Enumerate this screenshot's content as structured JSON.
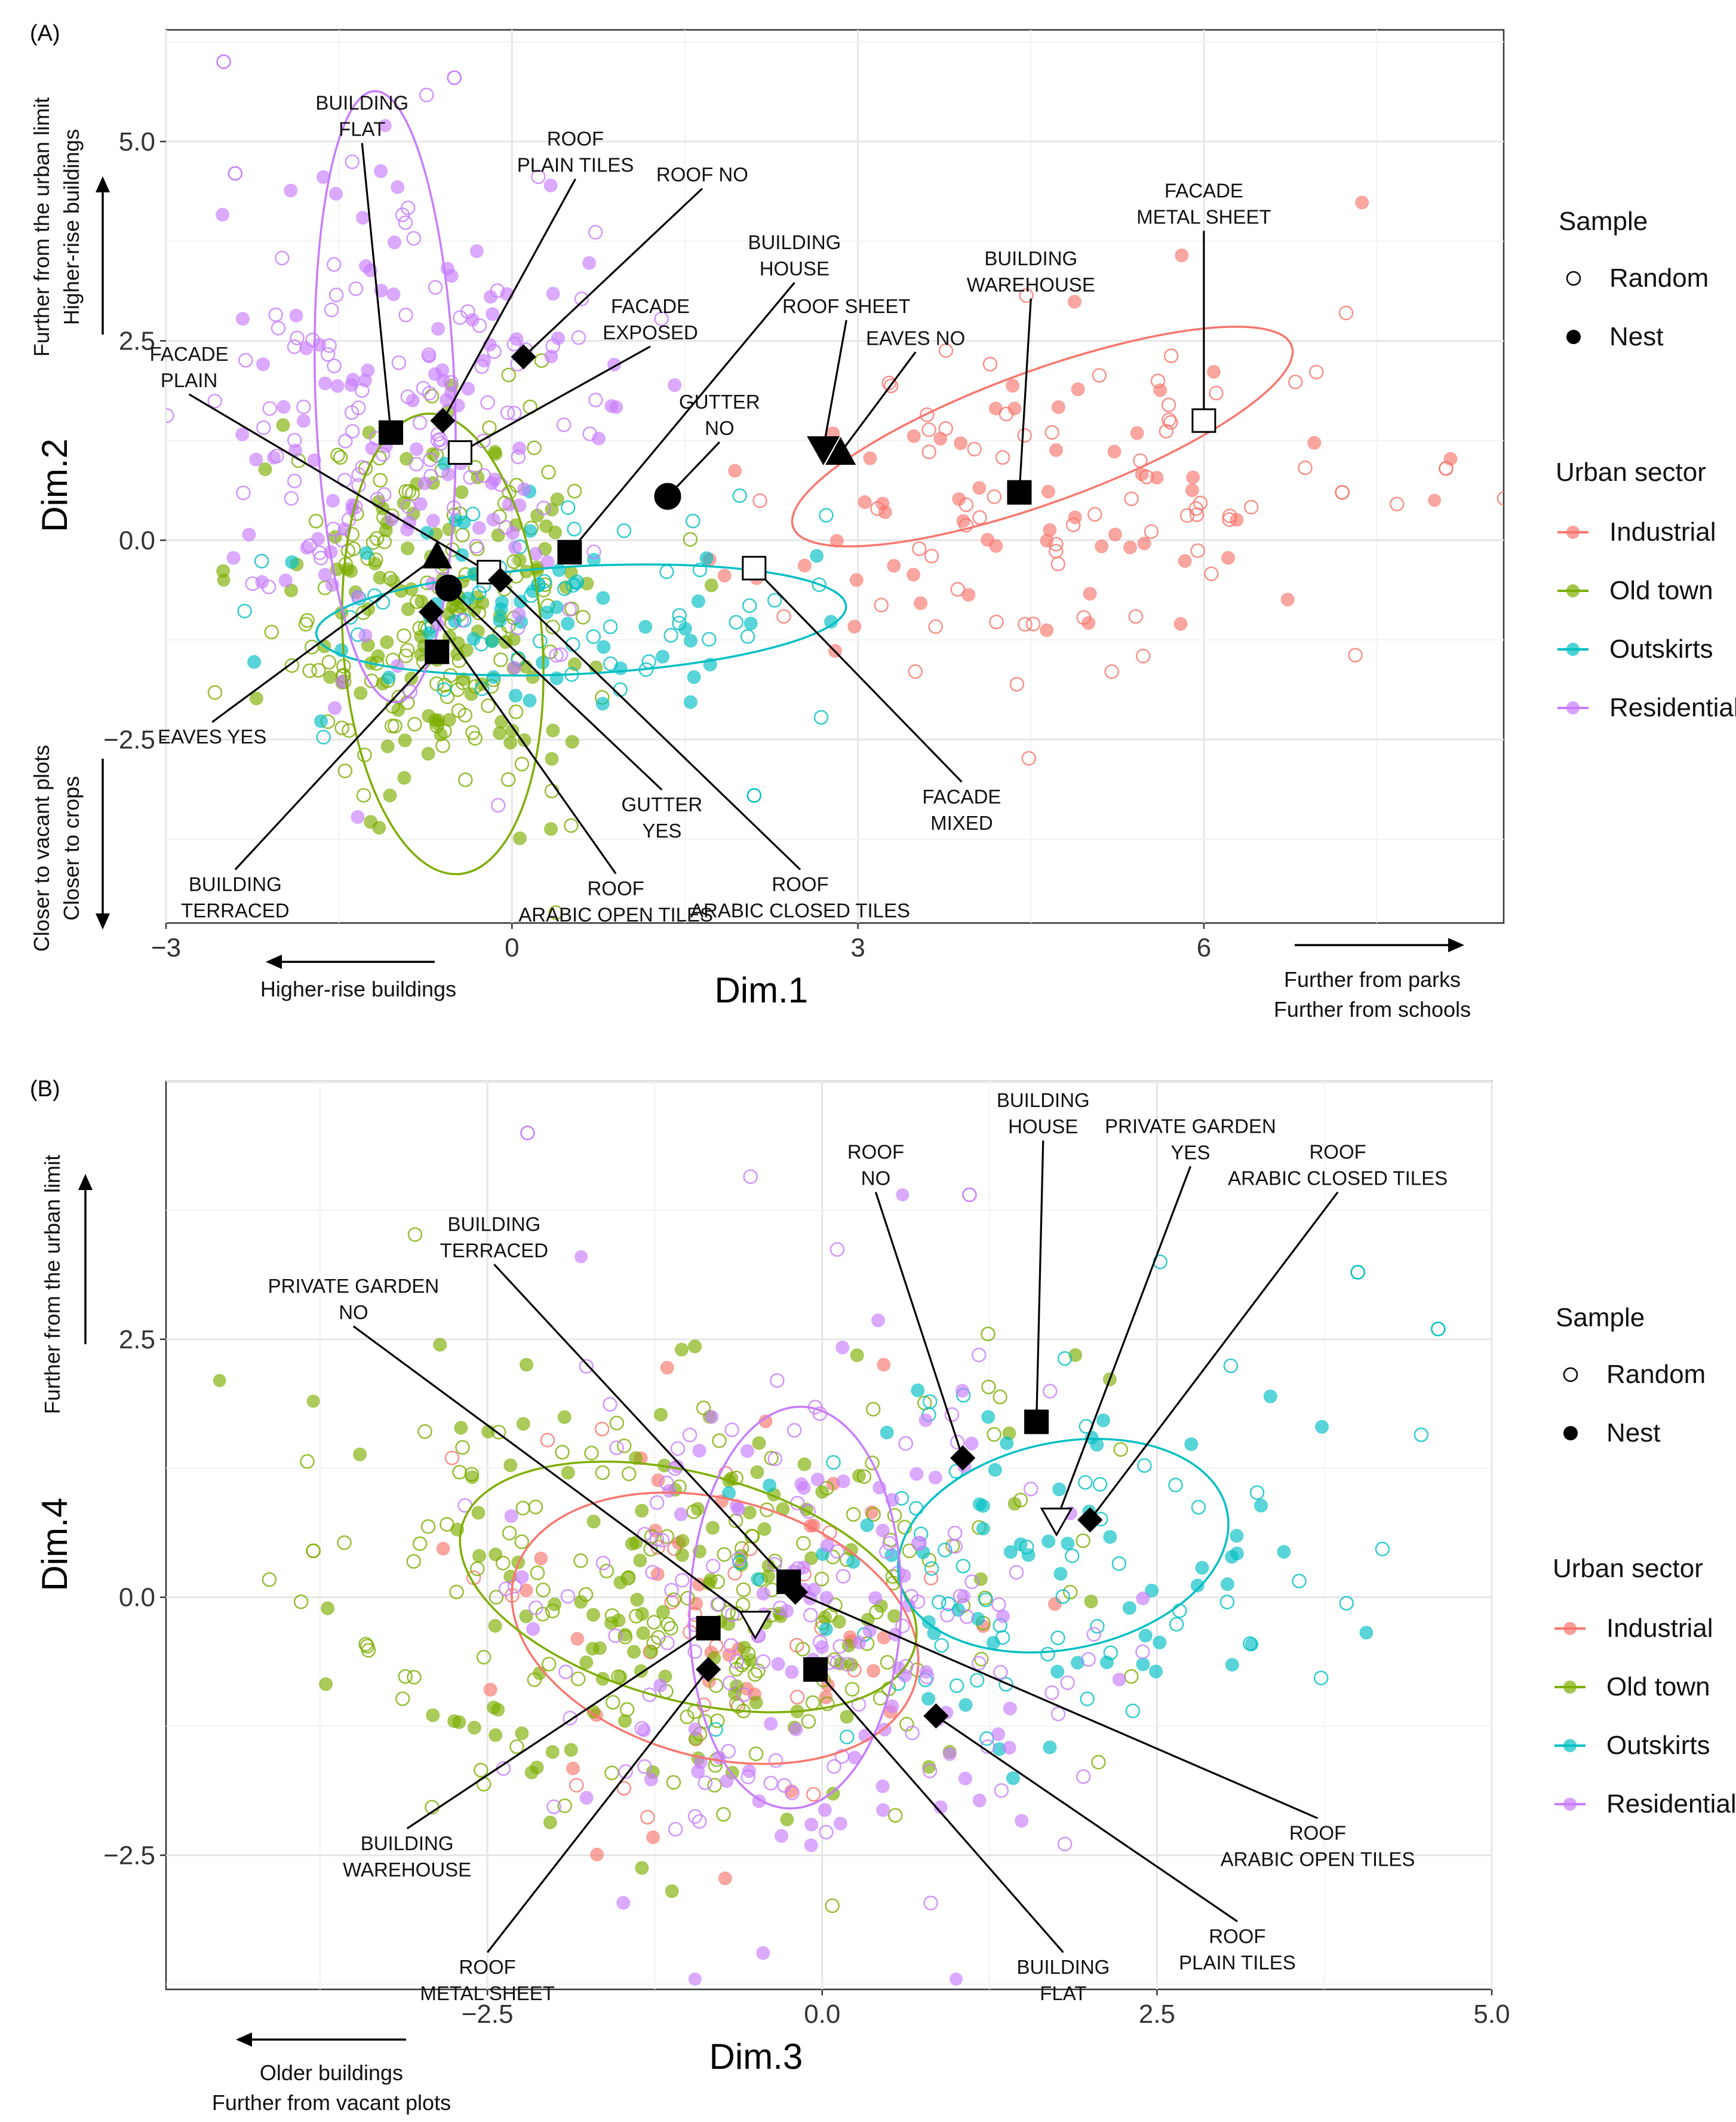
{
  "colors": {
    "Industrial": "#F8766D",
    "Old town": "#7CAE00",
    "Outskirts": "#00BFC4",
    "Residential": "#C77CFF"
  },
  "legend": {
    "sample_title": "Sample",
    "sample_items": [
      {
        "label": "Random",
        "shape": "open-circle"
      },
      {
        "label": "Nest",
        "shape": "filled-circle"
      }
    ],
    "sector_title": "Urban sector",
    "sector_items": [
      "Industrial",
      "Old town",
      "Outskirts",
      "Residential"
    ]
  },
  "chart_data": [
    {
      "panel": "(A)",
      "type": "scatter",
      "xlabel": "Dim.1",
      "ylabel": "Dim.2",
      "xlim": [
        -3.0,
        8.6
      ],
      "ylim": [
        -4.8,
        6.4
      ],
      "xticks": [
        -3,
        0,
        3,
        6
      ],
      "xtick_labels": [
        "−3",
        "0",
        "3",
        "6"
      ],
      "yticks": [
        -2.5,
        0.0,
        2.5,
        5.0
      ],
      "ytick_labels": [
        "−2.5",
        "0.0",
        "2.5",
        "5.0"
      ],
      "direction_labels": {
        "x_neg": [
          "Higher-rise buildings"
        ],
        "x_pos": [
          "Further from parks",
          "Further from schools"
        ],
        "y_pos": [
          "Further from the urban limit",
          "Higher-rise buildings"
        ],
        "y_neg": [
          "Closer to vacant plots",
          "Closer to crops"
        ]
      },
      "ellipses": [
        {
          "sector": "Industrial",
          "cx": 4.6,
          "cy": 1.3,
          "rx": 4.6,
          "ry": 1.65,
          "angle": 20
        },
        {
          "sector": "Old town",
          "cx": -0.6,
          "cy": -1.3,
          "rx": 4.0,
          "ry": 2.5,
          "angle": 94
        },
        {
          "sector": "Outskirts",
          "cx": 0.6,
          "cy": -1.0,
          "rx": 4.6,
          "ry": 1.35,
          "angle": 3
        },
        {
          "sector": "Residential",
          "cx": -1.1,
          "cy": 1.8,
          "rx": 5.3,
          "ry": 1.75,
          "angle": 92
        }
      ],
      "clouds": [
        {
          "sector": "Industrial",
          "n": 130,
          "cx": 4.4,
          "cy": 0.4,
          "sx": 1.5,
          "sy": 1.1,
          "rot": 0.33
        },
        {
          "sector": "Old town",
          "n": 260,
          "cx": -0.6,
          "cy": -1.0,
          "sx": 0.75,
          "sy": 1.25,
          "rot": 0.0
        },
        {
          "sector": "Outskirts",
          "n": 110,
          "cx": 0.5,
          "cy": -0.8,
          "sx": 1.3,
          "sy": 0.7,
          "rot": 0.0
        },
        {
          "sector": "Residential",
          "n": 220,
          "cx": -1.0,
          "cy": 1.6,
          "sx": 0.9,
          "sy": 1.6,
          "rot": 0.0
        }
      ],
      "scatter_extra": [
        {
          "sector": "Residential",
          "x": -1.1,
          "y": 5.2,
          "nest": true
        },
        {
          "sector": "Residential",
          "x": -2.5,
          "y": 6.0,
          "nest": false
        },
        {
          "sector": "Residential",
          "x": -0.5,
          "y": 5.8,
          "nest": false
        },
        {
          "sector": "Residential",
          "x": -2.4,
          "y": 4.6,
          "nest": false
        },
        {
          "sector": "Industrial",
          "x": 8.1,
          "y": 0.9,
          "nest": false
        },
        {
          "sector": "Industrial",
          "x": 8.0,
          "y": 0.5,
          "nest": true
        },
        {
          "sector": "Industrial",
          "x": 7.2,
          "y": 0.6,
          "nest": false
        },
        {
          "sector": "Outskirts",
          "x": 2.1,
          "y": -3.2,
          "nest": false
        },
        {
          "sector": "Old town",
          "x": -2.5,
          "y": -0.5,
          "nest": true
        }
      ],
      "categories": [
        {
          "shape": "square",
          "fill": "filled",
          "x": -1.05,
          "y": 1.35,
          "label": [
            "BUILDING",
            "FLAT"
          ],
          "lx": -1.3,
          "ly": 5.4,
          "anchor": "middle"
        },
        {
          "shape": "diamond",
          "fill": "filled",
          "x": -0.6,
          "y": 1.5,
          "label": [
            "ROOF",
            "PLAIN TILES"
          ],
          "lx": 0.55,
          "ly": 4.95,
          "anchor": "middle"
        },
        {
          "shape": "diamond",
          "fill": "filled",
          "x": 0.1,
          "y": 2.3,
          "label": [
            "ROOF NO"
          ],
          "lx": 1.65,
          "ly": 4.5,
          "anchor": "middle"
        },
        {
          "shape": "square",
          "fill": "open",
          "x": -0.45,
          "y": 1.1,
          "label": [
            "FACADE",
            "EXPOSED"
          ],
          "lx": 1.2,
          "ly": 2.85,
          "anchor": "middle"
        },
        {
          "shape": "square",
          "fill": "filled",
          "x": 0.5,
          "y": -0.15,
          "label": [
            "BUILDING",
            "HOUSE"
          ],
          "lx": 2.45,
          "ly": 3.65,
          "anchor": "middle"
        },
        {
          "shape": "circle",
          "fill": "filled",
          "x": 1.35,
          "y": 0.55,
          "label": [
            "GUTTER",
            "NO"
          ],
          "lx": 1.8,
          "ly": 1.65,
          "anchor": "middle"
        },
        {
          "shape": "triangle-down",
          "fill": "filled",
          "x": 2.7,
          "y": 1.15,
          "label": [
            "ROOF SHEET"
          ],
          "lx": 2.9,
          "ly": 2.85,
          "anchor": "middle"
        },
        {
          "shape": "triangle-up",
          "fill": "filled",
          "x": 2.85,
          "y": 1.1,
          "label": [
            "EAVES NO"
          ],
          "lx": 3.5,
          "ly": 2.45,
          "anchor": "middle"
        },
        {
          "shape": "square",
          "fill": "filled",
          "x": 4.4,
          "y": 0.6,
          "label": [
            "BUILDING",
            "WAREHOUSE"
          ],
          "lx": 4.5,
          "ly": 3.45,
          "anchor": "middle"
        },
        {
          "shape": "square",
          "fill": "open",
          "x": 6.0,
          "y": 1.5,
          "label": [
            "FACADE",
            "METAL SHEET"
          ],
          "lx": 6.0,
          "ly": 4.3,
          "anchor": "middle"
        },
        {
          "shape": "square",
          "fill": "open",
          "x": -0.2,
          "y": -0.4,
          "label": [
            "FACADE",
            "PLAIN"
          ],
          "lx": -2.8,
          "ly": 2.25,
          "anchor": "middle"
        },
        {
          "shape": "triangle-up",
          "fill": "filled",
          "x": -0.65,
          "y": -0.2,
          "label": [
            "EAVES YES"
          ],
          "lx": -2.6,
          "ly": -2.55,
          "anchor": "middle"
        },
        {
          "shape": "circle",
          "fill": "filled",
          "x": -0.55,
          "y": -0.6,
          "label": [
            "GUTTER",
            "YES"
          ],
          "lx": 1.3,
          "ly": -3.4,
          "anchor": "middle"
        },
        {
          "shape": "diamond",
          "fill": "filled",
          "x": -0.1,
          "y": -0.5,
          "label": [
            "ROOF",
            "ARABIC CLOSED TILES"
          ],
          "lx": 2.5,
          "ly": -4.4,
          "anchor": "middle"
        },
        {
          "shape": "diamond",
          "fill": "filled",
          "x": -0.7,
          "y": -0.9,
          "label": [
            "ROOF",
            "ARABIC OPEN TILES"
          ],
          "lx": 0.9,
          "ly": -4.45,
          "anchor": "middle"
        },
        {
          "shape": "square",
          "fill": "filled",
          "x": -0.65,
          "y": -1.4,
          "label": [
            "BUILDING",
            "TERRACED"
          ],
          "lx": -2.4,
          "ly": -4.4,
          "anchor": "middle"
        },
        {
          "shape": "square",
          "fill": "open",
          "x": 2.1,
          "y": -0.35,
          "label": [
            "FACADE",
            "MIXED"
          ],
          "lx": 3.9,
          "ly": -3.3,
          "anchor": "middle"
        }
      ]
    },
    {
      "panel": "(B)",
      "type": "scatter",
      "xlabel": "Dim.3",
      "ylabel": "Dim.4",
      "xlim": [
        -4.9,
        5.0
      ],
      "ylim": [
        -3.8,
        5.0
      ],
      "xticks": [
        -2.5,
        0.0,
        2.5,
        5.0
      ],
      "xtick_labels": [
        "−2.5",
        "0.0",
        "2.5",
        "5.0"
      ],
      "yticks": [
        -2.5,
        0.0,
        2.5
      ],
      "ytick_labels": [
        "−2.5",
        "0.0",
        "2.5"
      ],
      "direction_labels": {
        "x_neg": [
          "Older buildings",
          "Further from vacant plots"
        ],
        "y_pos": [
          "Further from the urban limit"
        ]
      },
      "ellipses": [
        {
          "sector": "Industrial",
          "cx": -0.8,
          "cy": -0.3,
          "rx": 3.1,
          "ry": 2.5,
          "angle": -15
        },
        {
          "sector": "Old town",
          "cx": -1.0,
          "cy": 0.1,
          "rx": 3.5,
          "ry": 2.2,
          "angle": -15
        },
        {
          "sector": "Outskirts",
          "cx": 1.8,
          "cy": 0.5,
          "rx": 2.5,
          "ry": 2.0,
          "angle": 12
        },
        {
          "sector": "Residential",
          "cx": -0.2,
          "cy": -0.1,
          "rx": 3.0,
          "ry": 2.05,
          "angle": -92
        }
      ],
      "clouds": [
        {
          "sector": "Industrial",
          "n": 70,
          "cx": -0.7,
          "cy": -0.2,
          "sx": 1.1,
          "sy": 1.0,
          "rot": -0.2
        },
        {
          "sector": "Old town",
          "n": 300,
          "cx": -0.9,
          "cy": 0.0,
          "sx": 1.3,
          "sy": 1.1,
          "rot": -0.2
        },
        {
          "sector": "Outskirts",
          "n": 120,
          "cx": 1.7,
          "cy": 0.4,
          "sx": 1.1,
          "sy": 1.0,
          "rot": 0.2
        },
        {
          "sector": "Residential",
          "n": 210,
          "cx": -0.1,
          "cy": -0.3,
          "sx": 1.0,
          "sy": 1.3,
          "rot": 0.0
        }
      ],
      "scatter_extra": [
        {
          "sector": "Residential",
          "x": -2.2,
          "y": 4.5,
          "nest": false
        },
        {
          "sector": "Residential",
          "x": 0.6,
          "y": 3.9,
          "nest": true
        },
        {
          "sector": "Residential",
          "x": 1.1,
          "y": 3.9,
          "nest": false
        },
        {
          "sector": "Residential",
          "x": -1.8,
          "y": 3.3,
          "nest": true
        },
        {
          "sector": "Old town",
          "x": -4.5,
          "y": 2.1,
          "nest": true
        },
        {
          "sector": "Old town",
          "x": -3.8,
          "y": 1.9,
          "nest": true
        },
        {
          "sector": "Old town",
          "x": -3.8,
          "y": 0.45,
          "nest": false
        },
        {
          "sector": "Outskirts",
          "x": 4.6,
          "y": 2.6,
          "nest": false
        },
        {
          "sector": "Outskirts",
          "x": 4.0,
          "y": 3.15,
          "nest": false
        },
        {
          "sector": "Residential",
          "x": -0.95,
          "y": -3.7,
          "nest": true
        },
        {
          "sector": "Residential",
          "x": 1.0,
          "y": -3.7,
          "nest": true
        }
      ],
      "categories": [
        {
          "shape": "diamond",
          "fill": "filled",
          "x": 1.05,
          "y": 1.35,
          "label": [
            "ROOF",
            "NO"
          ],
          "lx": 0.4,
          "ly": 4.25,
          "anchor": "middle"
        },
        {
          "shape": "square",
          "fill": "filled",
          "x": 1.6,
          "y": 1.7,
          "label": [
            "BUILDING",
            "HOUSE"
          ],
          "lx": 1.65,
          "ly": 4.75,
          "anchor": "middle"
        },
        {
          "shape": "triangle-down",
          "fill": "open",
          "x": 1.75,
          "y": 0.75,
          "label": [
            "PRIVATE GARDEN",
            "YES"
          ],
          "lx": 2.75,
          "ly": 4.5,
          "anchor": "middle"
        },
        {
          "shape": "diamond",
          "fill": "filled",
          "x": 2.0,
          "y": 0.75,
          "label": [
            "ROOF",
            "ARABIC CLOSED TILES"
          ],
          "lx": 3.85,
          "ly": 4.25,
          "anchor": "middle"
        },
        {
          "shape": "square",
          "fill": "filled",
          "x": -0.25,
          "y": 0.15,
          "label": [
            "BUILDING",
            "TERRACED"
          ],
          "lx": -2.45,
          "ly": 3.55,
          "anchor": "middle"
        },
        {
          "shape": "triangle-down",
          "fill": "open",
          "x": -0.5,
          "y": -0.25,
          "label": [
            "PRIVATE GARDEN",
            "NO"
          ],
          "lx": -3.5,
          "ly": 2.95,
          "anchor": "middle"
        },
        {
          "shape": "square",
          "fill": "filled",
          "x": -0.85,
          "y": -0.3,
          "label": [
            "BUILDING",
            "WAREHOUSE"
          ],
          "lx": -3.1,
          "ly": -2.45,
          "anchor": "middle"
        },
        {
          "shape": "diamond",
          "fill": "filled",
          "x": -0.85,
          "y": -0.7,
          "label": [
            "ROOF",
            "METAL SHEET"
          ],
          "lx": -2.5,
          "ly": -3.65,
          "anchor": "middle"
        },
        {
          "shape": "square",
          "fill": "filled",
          "x": -0.05,
          "y": -0.7,
          "label": [
            "BUILDING",
            "FLAT"
          ],
          "lx": 1.8,
          "ly": -3.65,
          "anchor": "middle"
        },
        {
          "shape": "diamond",
          "fill": "filled",
          "x": 0.85,
          "y": -1.15,
          "label": [
            "ROOF",
            "PLAIN TILES"
          ],
          "lx": 3.1,
          "ly": -3.35,
          "anchor": "middle"
        },
        {
          "shape": "diamond",
          "fill": "filled",
          "x": -0.2,
          "y": 0.05,
          "label": [
            "ROOF",
            "ARABIC OPEN TILES"
          ],
          "lx": 3.7,
          "ly": -2.35,
          "anchor": "middle"
        }
      ]
    }
  ]
}
